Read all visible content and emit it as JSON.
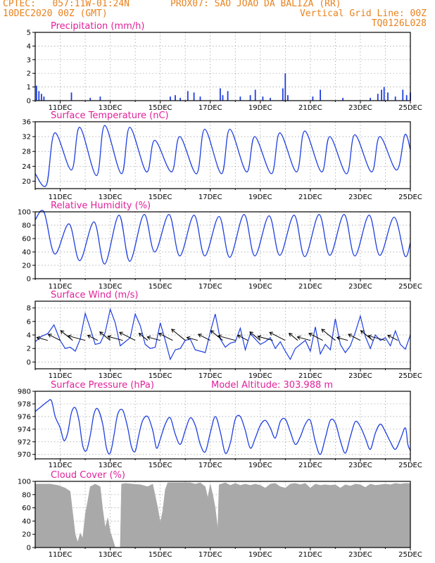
{
  "header": {
    "line1_left": "CPTEC:   057:11W-01:24N",
    "line1_right": "PROX07: SAO JOAO DA BALIZA (RR)",
    "line2_left": "10DEC2020 00Z (GMT)",
    "line2_right": "Vertical Grid Line: 00Z",
    "line3_right": "TQ0126L028"
  },
  "colors": {
    "header_text": "#e8821e",
    "panel_title": "#e0219a",
    "series_line": "#1f3fe0",
    "cloud_fill": "#a9a9a9",
    "grid": "#999999"
  },
  "chart_data": [
    {
      "type": "bar",
      "title": "Precipitation (mm/h)",
      "x_tick_labels": [
        "11DEC",
        "13DEC",
        "15DEC",
        "17DEC",
        "19DEC",
        "21DEC",
        "23DEC",
        "25DEC"
      ],
      "ylim": [
        0,
        5
      ],
      "yticks": [
        0,
        1,
        2,
        3,
        4,
        5
      ],
      "grid": true,
      "events": [
        {
          "day": 0.05,
          "value": 1.1
        },
        {
          "day": 0.15,
          "value": 0.7
        },
        {
          "day": 0.25,
          "value": 0.5
        },
        {
          "day": 0.35,
          "value": 0.3
        },
        {
          "day": 1.45,
          "value": 0.6
        },
        {
          "day": 2.2,
          "value": 0.2
        },
        {
          "day": 2.6,
          "value": 0.3
        },
        {
          "day": 5.4,
          "value": 0.3
        },
        {
          "day": 5.6,
          "value": 0.4
        },
        {
          "day": 5.8,
          "value": 0.2
        },
        {
          "day": 6.1,
          "value": 0.7
        },
        {
          "day": 6.35,
          "value": 0.6
        },
        {
          "day": 6.6,
          "value": 0.3
        },
        {
          "day": 7.4,
          "value": 0.9
        },
        {
          "day": 7.5,
          "value": 0.4
        },
        {
          "day": 7.7,
          "value": 0.7
        },
        {
          "day": 8.2,
          "value": 0.3
        },
        {
          "day": 8.6,
          "value": 0.4
        },
        {
          "day": 8.8,
          "value": 0.8
        },
        {
          "day": 9.1,
          "value": 0.3
        },
        {
          "day": 9.4,
          "value": 0.2
        },
        {
          "day": 9.9,
          "value": 0.9
        },
        {
          "day": 10.0,
          "value": 2.0
        },
        {
          "day": 10.1,
          "value": 0.4
        },
        {
          "day": 11.1,
          "value": 0.3
        },
        {
          "day": 11.4,
          "value": 0.8
        },
        {
          "day": 12.3,
          "value": 0.2
        },
        {
          "day": 13.4,
          "value": 0.2
        },
        {
          "day": 13.7,
          "value": 0.5
        },
        {
          "day": 13.85,
          "value": 0.8
        },
        {
          "day": 13.95,
          "value": 1.0
        },
        {
          "day": 14.1,
          "value": 0.6
        },
        {
          "day": 14.4,
          "value": 0.3
        },
        {
          "day": 14.7,
          "value": 0.8
        },
        {
          "day": 14.85,
          "value": 0.4
        },
        {
          "day": 15.0,
          "value": 0.6
        }
      ]
    },
    {
      "type": "line",
      "title": "Surface Temperature (nC)",
      "x_tick_labels": [
        "11DEC",
        "13DEC",
        "15DEC",
        "17DEC",
        "19DEC",
        "21DEC",
        "23DEC",
        "25DEC"
      ],
      "ylim": [
        18,
        36
      ],
      "yticks": [
        20,
        24,
        28,
        32,
        36
      ],
      "grid": true,
      "daily_min": [
        19.0,
        23.0,
        21.5,
        22.0,
        22.5,
        22.5,
        22.0,
        22.0,
        22.5,
        22.0,
        22.5,
        22.5,
        22.0,
        22.5,
        23.0
      ],
      "daily_max": [
        33.0,
        34.5,
        35.0,
        34.5,
        31.0,
        32.0,
        34.0,
        34.0,
        32.0,
        33.0,
        33.5,
        32.0,
        32.5,
        32.0,
        32.5
      ],
      "start_value": 22.0,
      "end_value": 28.5
    },
    {
      "type": "line",
      "title": "Relative Humidity (%)",
      "x_tick_labels": [
        "11DEC",
        "13DEC",
        "15DEC",
        "17DEC",
        "19DEC",
        "21DEC",
        "23DEC",
        "25DEC"
      ],
      "ylim": [
        0,
        100
      ],
      "yticks": [
        0,
        20,
        40,
        60,
        80,
        100
      ],
      "grid": true,
      "daily_max": [
        100,
        82,
        85,
        95,
        96,
        96,
        95,
        93,
        96,
        94,
        95,
        96,
        96,
        95,
        92
      ],
      "daily_min": [
        37,
        27,
        22,
        26,
        40,
        34,
        34,
        32,
        34,
        35,
        33,
        35,
        34,
        35,
        34
      ],
      "start_value": 88,
      "end_value": 54
    },
    {
      "type": "line",
      "title": "Surface Wind (m/s)",
      "x_tick_labels": [
        "11DEC",
        "13DEC",
        "15DEC",
        "17DEC",
        "19DEC",
        "21DEC",
        "23DEC",
        "25DEC"
      ],
      "ylim": [
        -1,
        9
      ],
      "yticks": [
        0,
        2,
        4,
        6,
        8
      ],
      "grid": true,
      "points": [
        [
          0.0,
          3.0
        ],
        [
          0.25,
          3.8
        ],
        [
          0.5,
          4.2
        ],
        [
          0.75,
          5.5
        ],
        [
          1.0,
          3.2
        ],
        [
          1.2,
          2.0
        ],
        [
          1.4,
          2.2
        ],
        [
          1.6,
          1.6
        ],
        [
          1.8,
          3.4
        ],
        [
          2.0,
          7.2
        ],
        [
          2.2,
          5.0
        ],
        [
          2.4,
          2.6
        ],
        [
          2.6,
          2.8
        ],
        [
          2.8,
          4.4
        ],
        [
          3.0,
          7.8
        ],
        [
          3.2,
          5.8
        ],
        [
          3.4,
          2.4
        ],
        [
          3.6,
          3.0
        ],
        [
          3.8,
          3.6
        ],
        [
          4.0,
          7.1
        ],
        [
          4.2,
          5.4
        ],
        [
          4.4,
          2.6
        ],
        [
          4.6,
          2.0
        ],
        [
          4.8,
          2.2
        ],
        [
          5.0,
          5.8
        ],
        [
          5.2,
          3.2
        ],
        [
          5.4,
          0.4
        ],
        [
          5.6,
          1.8
        ],
        [
          5.8,
          2.0
        ],
        [
          6.0,
          3.2
        ],
        [
          6.2,
          3.4
        ],
        [
          6.4,
          1.8
        ],
        [
          6.6,
          1.6
        ],
        [
          6.8,
          1.4
        ],
        [
          7.0,
          4.4
        ],
        [
          7.2,
          7.1
        ],
        [
          7.4,
          3.4
        ],
        [
          7.6,
          2.2
        ],
        [
          7.8,
          2.8
        ],
        [
          8.0,
          3.0
        ],
        [
          8.2,
          5.0
        ],
        [
          8.4,
          1.8
        ],
        [
          8.6,
          4.2
        ],
        [
          8.8,
          3.4
        ],
        [
          9.0,
          2.6
        ],
        [
          9.2,
          3.0
        ],
        [
          9.4,
          3.6
        ],
        [
          9.6,
          2.0
        ],
        [
          9.8,
          3.0
        ],
        [
          10.0,
          1.6
        ],
        [
          10.2,
          0.4
        ],
        [
          10.4,
          2.0
        ],
        [
          10.6,
          2.6
        ],
        [
          10.8,
          3.2
        ],
        [
          11.0,
          1.6
        ],
        [
          11.2,
          5.2
        ],
        [
          11.4,
          1.2
        ],
        [
          11.6,
          2.6
        ],
        [
          11.8,
          1.8
        ],
        [
          12.0,
          6.4
        ],
        [
          12.2,
          2.6
        ],
        [
          12.4,
          1.4
        ],
        [
          12.6,
          2.4
        ],
        [
          12.8,
          4.4
        ],
        [
          13.0,
          6.8
        ],
        [
          13.2,
          3.8
        ],
        [
          13.4,
          2.0
        ],
        [
          13.6,
          4.0
        ],
        [
          13.8,
          3.2
        ],
        [
          14.0,
          3.6
        ],
        [
          14.2,
          2.4
        ],
        [
          14.4,
          4.6
        ],
        [
          14.6,
          2.6
        ],
        [
          14.8,
          1.9
        ],
        [
          15.0,
          4.0
        ]
      ],
      "wind_barbs_present": true
    },
    {
      "type": "line",
      "title": "Surface Pressure (hPa)",
      "annotation": "Model Altitude: 303.988 m",
      "x_tick_labels": [
        "11DEC",
        "13DEC",
        "15DEC",
        "17DEC",
        "19DEC",
        "21DEC",
        "23DEC",
        "25DEC"
      ],
      "ylim": [
        969.3,
        980
      ],
      "yticks": [
        970,
        972,
        974,
        976,
        978,
        980
      ],
      "grid": true,
      "points": [
        [
          0.0,
          976.8
        ],
        [
          0.25,
          977.6
        ],
        [
          0.5,
          978.4
        ],
        [
          0.65,
          978.5
        ],
        [
          0.8,
          976.0
        ],
        [
          1.0,
          974.2
        ],
        [
          1.15,
          972.2
        ],
        [
          1.3,
          973.4
        ],
        [
          1.45,
          976.6
        ],
        [
          1.6,
          977.4
        ],
        [
          1.75,
          975.4
        ],
        [
          1.9,
          971.4
        ],
        [
          2.05,
          970.6
        ],
        [
          2.2,
          973.0
        ],
        [
          2.35,
          976.4
        ],
        [
          2.5,
          977.2
        ],
        [
          2.7,
          974.8
        ],
        [
          2.85,
          971.0
        ],
        [
          3.0,
          970.2
        ],
        [
          3.15,
          973.0
        ],
        [
          3.3,
          976.4
        ],
        [
          3.5,
          977.0
        ],
        [
          3.7,
          974.2
        ],
        [
          3.85,
          971.2
        ],
        [
          4.0,
          970.5
        ],
        [
          4.15,
          973.2
        ],
        [
          4.3,
          975.4
        ],
        [
          4.5,
          976.0
        ],
        [
          4.7,
          973.8
        ],
        [
          4.85,
          971.0
        ],
        [
          5.0,
          972.4
        ],
        [
          5.2,
          974.8
        ],
        [
          5.4,
          975.8
        ],
        [
          5.6,
          973.2
        ],
        [
          5.8,
          971.6
        ],
        [
          6.0,
          973.8
        ],
        [
          6.2,
          975.8
        ],
        [
          6.4,
          974.6
        ],
        [
          6.6,
          971.6
        ],
        [
          6.8,
          970.4
        ],
        [
          7.0,
          973.4
        ],
        [
          7.2,
          976.0
        ],
        [
          7.4,
          973.6
        ],
        [
          7.6,
          970.2
        ],
        [
          7.8,
          971.8
        ],
        [
          8.0,
          975.6
        ],
        [
          8.2,
          976.0
        ],
        [
          8.4,
          973.8
        ],
        [
          8.6,
          971.0
        ],
        [
          8.8,
          972.6
        ],
        [
          9.0,
          974.6
        ],
        [
          9.2,
          975.4
        ],
        [
          9.4,
          974.2
        ],
        [
          9.6,
          972.6
        ],
        [
          9.8,
          975.2
        ],
        [
          10.0,
          975.6
        ],
        [
          10.2,
          973.6
        ],
        [
          10.4,
          971.6
        ],
        [
          10.6,
          972.8
        ],
        [
          10.8,
          974.8
        ],
        [
          11.0,
          975.4
        ],
        [
          11.2,
          972.0
        ],
        [
          11.4,
          970.0
        ],
        [
          11.6,
          972.6
        ],
        [
          11.8,
          975.4
        ],
        [
          12.0,
          975.0
        ],
        [
          12.2,
          972.2
        ],
        [
          12.4,
          970.2
        ],
        [
          12.6,
          972.8
        ],
        [
          12.8,
          975.2
        ],
        [
          13.0,
          974.4
        ],
        [
          13.2,
          972.6
        ],
        [
          13.4,
          970.8
        ],
        [
          13.6,
          973.4
        ],
        [
          13.8,
          974.8
        ],
        [
          14.0,
          973.6
        ],
        [
          14.2,
          972.0
        ],
        [
          14.4,
          970.8
        ],
        [
          14.6,
          972.4
        ],
        [
          14.8,
          974.2
        ],
        [
          14.9,
          971.6
        ],
        [
          15.0,
          970.6
        ]
      ]
    },
    {
      "type": "area",
      "title": "Cloud Cover (%)",
      "x_tick_labels": [
        "11DEC",
        "13DEC",
        "15DEC",
        "17DEC",
        "19DEC",
        "21DEC",
        "23DEC",
        "25DEC"
      ],
      "ylim": [
        0,
        100
      ],
      "yticks": [
        0,
        20,
        40,
        60,
        80,
        100
      ],
      "grid": true,
      "points": [
        [
          0.0,
          96
        ],
        [
          0.3,
          96
        ],
        [
          0.6,
          96
        ],
        [
          0.9,
          94
        ],
        [
          1.2,
          90
        ],
        [
          1.4,
          85
        ],
        [
          1.6,
          20
        ],
        [
          1.7,
          8
        ],
        [
          1.8,
          22
        ],
        [
          1.9,
          14
        ],
        [
          2.0,
          50
        ],
        [
          2.1,
          70
        ],
        [
          2.2,
          92
        ],
        [
          2.4,
          96
        ],
        [
          2.6,
          92
        ],
        [
          2.7,
          58
        ],
        [
          2.8,
          30
        ],
        [
          2.9,
          45
        ],
        [
          3.0,
          24
        ],
        [
          3.1,
          12
        ],
        [
          3.2,
          0
        ],
        [
          3.3,
          0
        ],
        [
          3.4,
          0
        ],
        [
          3.45,
          96
        ],
        [
          3.6,
          97
        ],
        [
          3.9,
          96
        ],
        [
          4.2,
          95
        ],
        [
          4.5,
          92
        ],
        [
          4.7,
          96
        ],
        [
          4.9,
          60
        ],
        [
          5.0,
          38
        ],
        [
          5.1,
          55
        ],
        [
          5.2,
          88
        ],
        [
          5.3,
          98
        ],
        [
          5.6,
          98
        ],
        [
          5.9,
          98
        ],
        [
          6.2,
          98
        ],
        [
          6.4,
          96
        ],
        [
          6.6,
          98
        ],
        [
          6.8,
          92
        ],
        [
          6.9,
          75
        ],
        [
          7.0,
          96
        ],
        [
          7.1,
          80
        ],
        [
          7.2,
          60
        ],
        [
          7.3,
          28
        ],
        [
          7.35,
          95
        ],
        [
          7.6,
          98
        ],
        [
          7.8,
          94
        ],
        [
          8.0,
          97
        ],
        [
          8.2,
          94
        ],
        [
          8.4,
          96
        ],
        [
          8.6,
          94
        ],
        [
          8.8,
          96
        ],
        [
          9.0,
          94
        ],
        [
          9.2,
          90
        ],
        [
          9.4,
          96
        ],
        [
          9.6,
          97
        ],
        [
          9.8,
          92
        ],
        [
          10.0,
          90
        ],
        [
          10.2,
          96
        ],
        [
          10.4,
          97
        ],
        [
          10.6,
          95
        ],
        [
          10.8,
          97
        ],
        [
          11.0,
          90
        ],
        [
          11.2,
          96
        ],
        [
          11.4,
          94
        ],
        [
          11.6,
          95
        ],
        [
          11.8,
          94
        ],
        [
          12.0,
          95
        ],
        [
          12.2,
          90
        ],
        [
          12.4,
          95
        ],
        [
          12.6,
          93
        ],
        [
          12.8,
          96
        ],
        [
          13.0,
          95
        ],
        [
          13.2,
          91
        ],
        [
          13.4,
          96
        ],
        [
          13.6,
          94
        ],
        [
          13.8,
          95
        ],
        [
          14.0,
          96
        ],
        [
          14.2,
          95
        ],
        [
          14.4,
          97
        ],
        [
          14.6,
          96
        ],
        [
          14.8,
          97
        ],
        [
          15.0,
          97
        ]
      ]
    }
  ]
}
